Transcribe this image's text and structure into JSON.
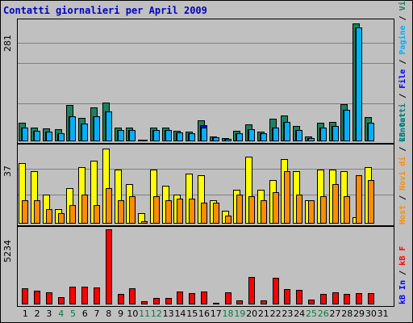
{
  "chart_data": {
    "type": "bar",
    "title": "Contatti giornalieri per April 2009",
    "categories": [
      "1",
      "2",
      "3",
      "4",
      "5",
      "6",
      "7",
      "8",
      "9",
      "10",
      "11",
      "12",
      "13",
      "14",
      "15",
      "16",
      "17",
      "18",
      "19",
      "20",
      "21",
      "22",
      "23",
      "24",
      "25",
      "26",
      "27",
      "28",
      "29",
      "30",
      "31"
    ],
    "weekend_days": [
      "4",
      "5",
      "11",
      "12",
      "18",
      "19",
      "25",
      "26"
    ],
    "colors": {
      "visite": "#1f7f5f",
      "pagine": "#00b0ff",
      "file": "#0000ff",
      "contatti": "#007f7f",
      "siti": "#ffff00",
      "kbytes": "#ff8c00",
      "kbytes_total": "#ff0000"
    },
    "panels": [
      {
        "max_label": "281",
        "ylim": [
          0,
          281
        ],
        "legend": [
          {
            "text": "Contatti",
            "color": "#007f7f"
          },
          {
            "text": "File",
            "color": "#0000ff"
          },
          {
            "text": "Pagine",
            "color": "#00b0ff"
          },
          {
            "text": "Visite",
            "color": "#1f7f5f"
          }
        ],
        "series": [
          {
            "key": "visite",
            "values": [
              44,
              32,
              30,
              28,
              85,
              54,
              80,
              90,
              33,
              33,
              4,
              33,
              33,
              25,
              22,
              49,
              12,
              8,
              25,
              39,
              22,
              52,
              60,
              35,
              11,
              43,
              45,
              86,
              276,
              57,
              0
            ]
          },
          {
            "key": "file",
            "values": [
              32,
              24,
              23,
              18,
              58,
              41,
              58,
              70,
              26,
              26,
              4,
              26,
              26,
              21,
              18,
              38,
              10,
              6,
              18,
              29,
              18,
              33,
              45,
              27,
              8,
              33,
              35,
              73,
              266,
              44,
              0
            ]
          },
          {
            "key": "pagine",
            "values": [
              32,
              24,
              23,
              18,
              58,
              41,
              58,
              70,
              26,
              26,
              4,
              26,
              26,
              21,
              18,
              33,
              10,
              6,
              18,
              29,
              18,
              33,
              45,
              27,
              8,
              33,
              35,
              73,
              266,
              44,
              0
            ]
          }
        ]
      },
      {
        "max_label": "37",
        "ylim": [
          0,
          37
        ],
        "legend": [
          {
            "text": "Host",
            "color": "#ff8c00"
          },
          {
            "text": "Novi di",
            "color": "#ff8c00"
          },
          {
            "text": "kB Out",
            "color": "#008080"
          }
        ],
        "series": [
          {
            "key": "siti",
            "values": [
              29,
              25,
              14,
              7,
              17,
              27,
              30,
              36,
              26,
              19,
              5,
              26,
              18,
              14,
              24,
              23,
              11,
              6,
              16,
              32,
              16,
              21,
              31,
              25,
              11,
              26,
              26,
              25,
              3,
              27,
              0
            ]
          },
          {
            "key": "kbytes",
            "values": [
              11,
              11,
              7,
              5,
              9,
              14,
              9,
              17,
              11,
              13,
              1,
              13,
              11,
              12,
              12,
              10,
              10,
              4,
              14,
              13,
              11,
              15,
              25,
              14,
              11,
              13,
              19,
              13,
              23,
              21,
              0
            ]
          }
        ]
      },
      {
        "max_label": "5234",
        "ylim": [
          0,
          5234
        ],
        "legend": [
          {
            "text": "kB In",
            "color": "#0000ff"
          },
          {
            "text": "kB F",
            "color": "#ff0000"
          }
        ],
        "series": [
          {
            "key": "kbytes_total",
            "values": [
              1100,
              950,
              850,
              500,
              1200,
              1200,
              1150,
              5200,
              700,
              1100,
              230,
              430,
              450,
              900,
              800,
              900,
              100,
              860,
              300,
              1900,
              280,
              1850,
              1050,
              980,
              330,
              750,
              850,
              750,
              760,
              780,
              0
            ]
          }
        ]
      }
    ]
  }
}
